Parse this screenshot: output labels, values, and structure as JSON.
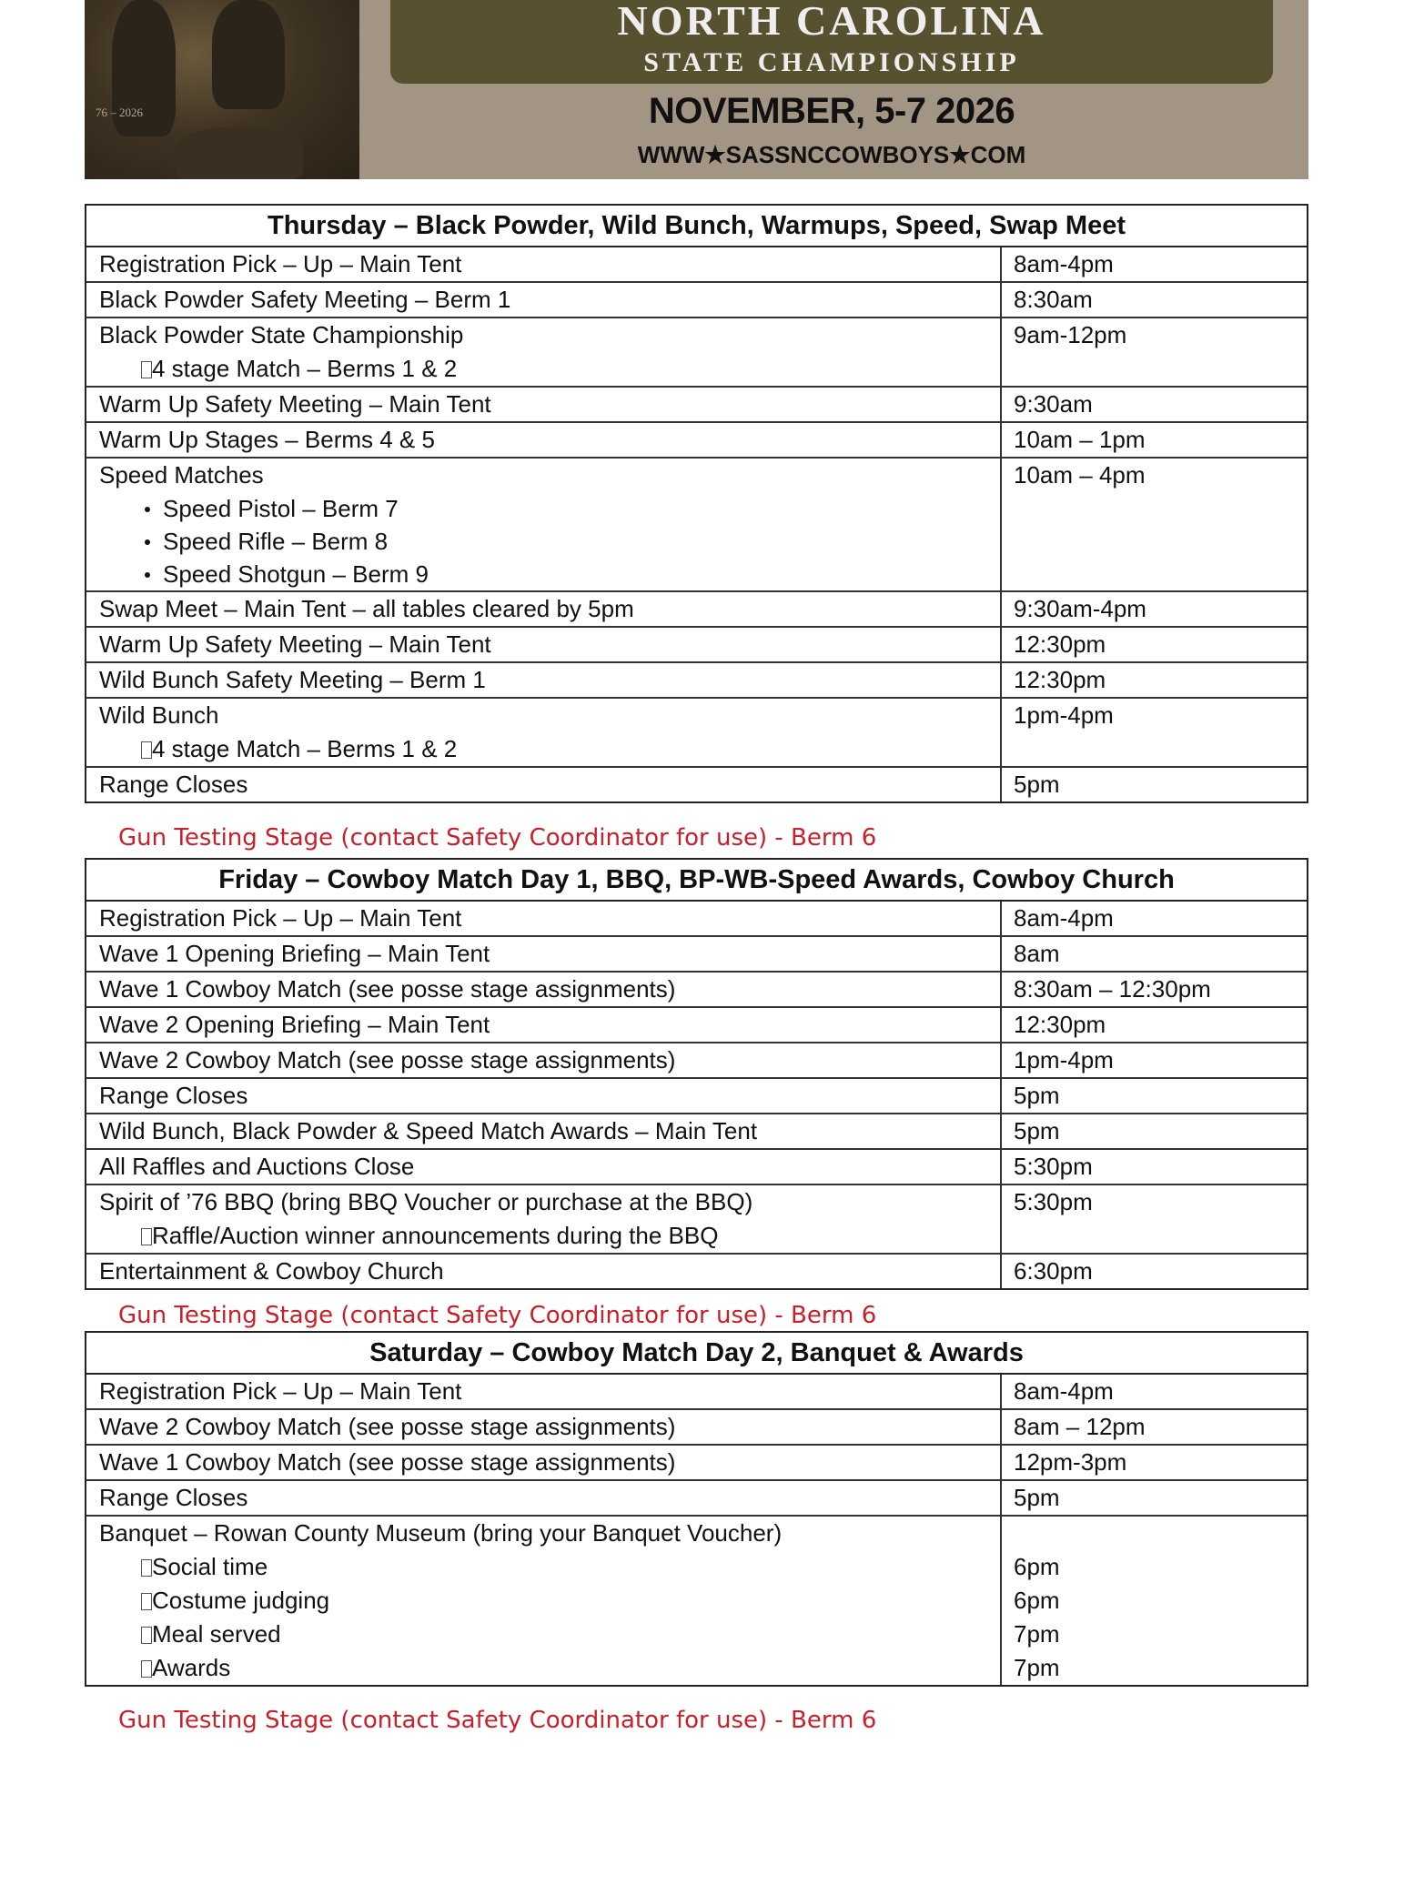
{
  "banner": {
    "title": "NORTH CAROLINA",
    "subtitle": "STATE CHAMPIONSHIP",
    "dates": "NOVEMBER, 5-7 2026",
    "website": "WWW★SASSNCCOWBOYS★COM",
    "painting_label": "76 – 2026"
  },
  "colors": {
    "note": "#c8202a",
    "plaque": "#57512f",
    "banner_bg": "#a39583"
  },
  "note_text": "Gun Testing Stage (contact Safety Coordinator for use) - Berm 6",
  "days": [
    {
      "title": "Thursday – Black Powder, Wild Bunch, Warmups, Speed, Swap Meet",
      "rows": [
        {
          "lines": [
            {
              "t": "Registration Pick – Up – Main Tent",
              "s": "plain"
            }
          ],
          "times": [
            "8am-4pm"
          ]
        },
        {
          "lines": [
            {
              "t": "Black Powder Safety Meeting – Berm 1",
              "s": "plain"
            }
          ],
          "times": [
            "8:30am"
          ]
        },
        {
          "lines": [
            {
              "t": "Black Powder State Championship",
              "s": "plain"
            },
            {
              "t": "4 stage Match – Berms 1 & 2",
              "s": "sub"
            }
          ],
          "times": [
            "9am-12pm"
          ]
        },
        {
          "lines": [
            {
              "t": "Warm Up Safety Meeting – Main Tent",
              "s": "plain"
            }
          ],
          "times": [
            "9:30am"
          ]
        },
        {
          "lines": [
            {
              "t": "Warm Up Stages – Berms 4 & 5",
              "s": "plain"
            }
          ],
          "times": [
            "10am – 1pm"
          ]
        },
        {
          "lines": [
            {
              "t": "Speed Matches",
              "s": "plain"
            },
            {
              "t": "Speed Pistol – Berm 7",
              "s": "bullet"
            },
            {
              "t": "Speed Rifle – Berm 8",
              "s": "bullet"
            },
            {
              "t": "Speed Shotgun – Berm 9",
              "s": "bullet"
            }
          ],
          "times": [
            "10am – 4pm"
          ]
        },
        {
          "lines": [
            {
              "t": "Swap Meet – Main Tent – all tables cleared by 5pm",
              "s": "plain"
            }
          ],
          "times": [
            "9:30am-4pm"
          ]
        },
        {
          "lines": [
            {
              "t": "Warm Up Safety Meeting – Main Tent",
              "s": "plain"
            }
          ],
          "times": [
            "12:30pm"
          ]
        },
        {
          "lines": [
            {
              "t": "Wild Bunch Safety Meeting – Berm 1",
              "s": "plain"
            }
          ],
          "times": [
            "12:30pm"
          ]
        },
        {
          "lines": [
            {
              "t": "Wild Bunch",
              "s": "plain"
            },
            {
              "t": "4 stage Match – Berms 1 & 2",
              "s": "sub"
            }
          ],
          "times": [
            "1pm-4pm"
          ]
        },
        {
          "lines": [
            {
              "t": "Range Closes",
              "s": "plain"
            }
          ],
          "times": [
            "5pm"
          ]
        }
      ]
    },
    {
      "title": "Friday – Cowboy Match Day 1, BBQ, BP-WB-Speed Awards, Cowboy Church",
      "rows": [
        {
          "lines": [
            {
              "t": "Registration Pick – Up – Main Tent",
              "s": "plain"
            }
          ],
          "times": [
            "8am-4pm"
          ]
        },
        {
          "lines": [
            {
              "t": "Wave 1 Opening Briefing – Main Tent",
              "s": "plain"
            }
          ],
          "times": [
            "8am"
          ]
        },
        {
          "lines": [
            {
              "t": "Wave 1 Cowboy Match (see posse stage assignments)",
              "s": "plain"
            }
          ],
          "times": [
            "8:30am – 12:30pm"
          ]
        },
        {
          "lines": [
            {
              "t": "Wave 2 Opening Briefing – Main Tent",
              "s": "plain"
            }
          ],
          "times": [
            "12:30pm"
          ]
        },
        {
          "lines": [
            {
              "t": "Wave 2 Cowboy Match (see posse stage assignments)",
              "s": "plain"
            }
          ],
          "times": [
            "1pm-4pm"
          ]
        },
        {
          "lines": [
            {
              "t": "Range Closes",
              "s": "plain"
            }
          ],
          "times": [
            "5pm"
          ]
        },
        {
          "lines": [
            {
              "t": "Wild Bunch, Black Powder & Speed Match Awards – Main Tent",
              "s": "plain"
            }
          ],
          "times": [
            "5pm"
          ]
        },
        {
          "lines": [
            {
              "t": "All Raffles and Auctions Close",
              "s": "plain"
            }
          ],
          "times": [
            "5:30pm"
          ]
        },
        {
          "lines": [
            {
              "t": "Spirit of ’76 BBQ (bring BBQ Voucher or purchase at the BBQ)",
              "s": "plain"
            },
            {
              "t": "Raffle/Auction winner announcements during the BBQ",
              "s": "sub"
            }
          ],
          "times": [
            "5:30pm"
          ]
        },
        {
          "lines": [
            {
              "t": "Entertainment & Cowboy Church",
              "s": "plain"
            }
          ],
          "times": [
            "6:30pm"
          ]
        }
      ]
    },
    {
      "title": "Saturday – Cowboy Match Day 2, Banquet & Awards",
      "rows": [
        {
          "lines": [
            {
              "t": "Registration Pick – Up – Main Tent",
              "s": "plain"
            }
          ],
          "times": [
            "8am-4pm"
          ]
        },
        {
          "lines": [
            {
              "t": "Wave 2 Cowboy Match (see posse stage assignments)",
              "s": "plain"
            }
          ],
          "times": [
            "8am – 12pm"
          ]
        },
        {
          "lines": [
            {
              "t": "Wave 1 Cowboy Match (see posse stage assignments)",
              "s": "plain"
            }
          ],
          "times": [
            "12pm-3pm"
          ]
        },
        {
          "lines": [
            {
              "t": "Range Closes",
              "s": "plain"
            }
          ],
          "times": [
            "5pm"
          ]
        },
        {
          "lines": [
            {
              "t": "Banquet – Rowan County Museum (bring your Banquet Voucher)",
              "s": "plain"
            },
            {
              "t": "Social time",
              "s": "sub"
            },
            {
              "t": "Costume judging",
              "s": "sub"
            },
            {
              "t": "Meal served",
              "s": "sub"
            },
            {
              "t": "Awards",
              "s": "sub"
            }
          ],
          "times": [
            "",
            "6pm",
            "6pm",
            "7pm",
            "7pm"
          ]
        }
      ]
    }
  ]
}
